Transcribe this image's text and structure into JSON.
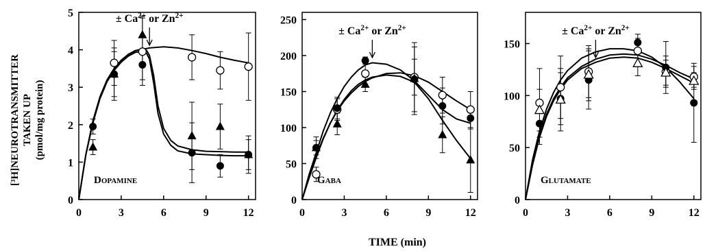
{
  "figure": {
    "ylabel_lines": [
      "[³H]NEUROTRANSMITTER",
      "TAKEN UP",
      "(pmol/mg protein)"
    ],
    "xlabel": "TIME (min)"
  },
  "chart_data": [
    {
      "type": "scatter",
      "panel_label": "DOPAMINE",
      "annotation": "± Ca²⁺ or Zn²⁺",
      "annotation_x": 5,
      "xlim": [
        0,
        12.5
      ],
      "ylim": [
        0,
        5
      ],
      "xticks": [
        0,
        3,
        6,
        9,
        12
      ],
      "yticks": [
        0,
        1,
        2,
        3,
        4,
        5
      ],
      "grid": false,
      "series": [
        {
          "marker": "open-circle",
          "x": [
            2.5,
            4.5,
            8,
            10,
            12
          ],
          "y": [
            3.65,
            3.95,
            3.8,
            3.45,
            3.55
          ],
          "err": [
            0.6,
            0.9,
            0.6,
            0.5,
            0.9
          ],
          "curve": [
            [
              0,
              0
            ],
            [
              0.5,
              1.2
            ],
            [
              1,
              2.1
            ],
            [
              1.5,
              2.75
            ],
            [
              2,
              3.2
            ],
            [
              2.5,
              3.5
            ],
            [
              3,
              3.72
            ],
            [
              3.5,
              3.87
            ],
            [
              4,
              3.97
            ],
            [
              5,
              4.05
            ],
            [
              6,
              4.08
            ],
            [
              7,
              4.05
            ],
            [
              8,
              3.98
            ],
            [
              9,
              3.9
            ],
            [
              10,
              3.8
            ],
            [
              11,
              3.72
            ],
            [
              12,
              3.65
            ]
          ]
        },
        {
          "marker": "filled-circle",
          "x": [
            1,
            2.5,
            4.5,
            8,
            10,
            12
          ],
          "y": [
            1.95,
            3.35,
            3.6,
            1.25,
            0.9,
            1.2
          ],
          "err": [
            0.2,
            0.7,
            0.4,
            0.8,
            0.3,
            0.5
          ],
          "curve": [
            [
              0,
              0
            ],
            [
              0.5,
              1.2
            ],
            [
              1,
              2.05
            ],
            [
              1.5,
              2.7
            ],
            [
              2,
              3.15
            ],
            [
              2.5,
              3.45
            ],
            [
              3,
              3.67
            ],
            [
              3.5,
              3.83
            ],
            [
              4,
              3.93
            ],
            [
              4.5,
              3.96
            ],
            [
              4.8,
              3.9
            ],
            [
              5,
              3.75
            ],
            [
              5.3,
              3.1
            ],
            [
              5.6,
              2.3
            ],
            [
              6,
              1.75
            ],
            [
              6.5,
              1.45
            ],
            [
              7,
              1.3
            ],
            [
              8,
              1.22
            ],
            [
              9,
              1.2
            ],
            [
              10,
              1.18
            ],
            [
              11,
              1.17
            ],
            [
              12,
              1.17
            ]
          ]
        },
        {
          "marker": "filled-triangle",
          "x": [
            1,
            2.5,
            4.5,
            8,
            10,
            12
          ],
          "y": [
            1.4,
            3.35,
            4.4,
            1.7,
            1.95,
            1.2
          ],
          "err": [
            0.2,
            0.6,
            0.5,
            0.9,
            0.6,
            0.4
          ],
          "curve": [
            [
              0,
              0
            ],
            [
              0.5,
              1.2
            ],
            [
              1,
              2.05
            ],
            [
              1.5,
              2.72
            ],
            [
              2,
              3.18
            ],
            [
              2.5,
              3.5
            ],
            [
              3,
              3.72
            ],
            [
              3.5,
              3.88
            ],
            [
              4,
              3.98
            ],
            [
              4.5,
              4.02
            ],
            [
              4.8,
              3.98
            ],
            [
              5,
              3.85
            ],
            [
              5.3,
              3.3
            ],
            [
              5.6,
              2.5
            ],
            [
              6,
              1.9
            ],
            [
              6.5,
              1.58
            ],
            [
              7,
              1.43
            ],
            [
              8,
              1.33
            ],
            [
              9,
              1.29
            ],
            [
              10,
              1.28
            ],
            [
              11,
              1.27
            ],
            [
              12,
              1.27
            ]
          ]
        }
      ]
    },
    {
      "type": "scatter",
      "panel_label": "GABA",
      "annotation": "± Ca²⁺ or Zn²⁺",
      "annotation_x": 5,
      "xlim": [
        0,
        12.5
      ],
      "ylim": [
        0,
        260
      ],
      "xticks": [
        0,
        3,
        6,
        9,
        12
      ],
      "yticks": [
        0,
        50,
        100,
        150,
        200,
        250
      ],
      "grid": false,
      "series": [
        {
          "marker": "open-circle",
          "x": [
            1,
            2.5,
            4.5,
            8,
            10,
            12
          ],
          "y": [
            35,
            125,
            175,
            170,
            145,
            125
          ],
          "err": [
            10,
            15,
            15,
            25,
            25,
            25
          ],
          "curve": [
            [
              0,
              0
            ],
            [
              0.5,
              32
            ],
            [
              1,
              60
            ],
            [
              1.5,
              85
            ],
            [
              2,
              106
            ],
            [
              2.5,
              123
            ],
            [
              3,
              137
            ],
            [
              3.5,
              148
            ],
            [
              4,
              157
            ],
            [
              4.5,
              164
            ],
            [
              5,
              169
            ],
            [
              6,
              175
            ],
            [
              7,
              176
            ],
            [
              8,
              172
            ],
            [
              9,
              163
            ],
            [
              10,
              150
            ],
            [
              11,
              137
            ],
            [
              12,
              125
            ]
          ]
        },
        {
          "marker": "filled-circle",
          "x": [
            1,
            2.5,
            4.5,
            8,
            10,
            12
          ],
          "y": [
            72,
            127,
            193,
            167,
            130,
            113
          ],
          "err": [
            10,
            15,
            5,
            45,
            25,
            15
          ],
          "curve": [
            [
              0,
              0
            ],
            [
              0.5,
              35
            ],
            [
              1,
              65
            ],
            [
              1.5,
              95
            ],
            [
              2,
              120
            ],
            [
              2.5,
              140
            ],
            [
              3,
              157
            ],
            [
              3.5,
              170
            ],
            [
              4,
              180
            ],
            [
              4.5,
              187
            ],
            [
              5,
              190
            ],
            [
              6,
              188
            ],
            [
              7,
              180
            ],
            [
              8,
              165
            ],
            [
              9,
              145
            ],
            [
              10,
              125
            ],
            [
              11,
              112
            ],
            [
              12,
              106
            ]
          ]
        },
        {
          "marker": "filled-triangle",
          "x": [
            1,
            2.5,
            4.5,
            8,
            10,
            12
          ],
          "y": [
            72,
            105,
            160,
            168,
            90,
            55
          ],
          "err": [
            15,
            15,
            10,
            50,
            25,
            45
          ],
          "curve": [
            [
              0,
              0
            ],
            [
              0.5,
              30
            ],
            [
              1,
              58
            ],
            [
              1.5,
              84
            ],
            [
              2,
              106
            ],
            [
              2.5,
              124
            ],
            [
              3,
              139
            ],
            [
              3.5,
              151
            ],
            [
              4,
              160
            ],
            [
              4.5,
              166
            ],
            [
              5,
              170
            ],
            [
              6,
              173
            ],
            [
              7,
              171
            ],
            [
              8,
              163
            ],
            [
              9,
              140
            ],
            [
              10,
              110
            ],
            [
              11,
              82
            ],
            [
              12,
              57
            ]
          ]
        }
      ]
    },
    {
      "type": "scatter",
      "panel_label": "GLUTAMATE",
      "annotation": "± Ca²⁺ or Zn²⁺",
      "annotation_x": 5,
      "xlim": [
        0,
        12.5
      ],
      "ylim": [
        0,
        180
      ],
      "xticks": [
        0,
        3,
        6,
        9,
        12
      ],
      "yticks": [
        0,
        50,
        100,
        150
      ],
      "grid": false,
      "series": [
        {
          "marker": "open-circle",
          "x": [
            1,
            2.5,
            4.5,
            8,
            10,
            12
          ],
          "y": [
            93,
            108,
            123,
            143,
            123,
            118
          ],
          "err": [
            33,
            30,
            25,
            12,
            15,
            10
          ],
          "curve": [
            [
              0,
              0
            ],
            [
              0.5,
              35
            ],
            [
              1,
              62
            ],
            [
              1.5,
              82
            ],
            [
              2,
              97
            ],
            [
              2.5,
              108
            ],
            [
              3,
              117
            ],
            [
              4,
              128
            ],
            [
              5,
              135
            ],
            [
              6,
              139
            ],
            [
              7,
              140
            ],
            [
              8,
              139
            ],
            [
              9,
              135
            ],
            [
              10,
              129
            ],
            [
              11,
              122
            ],
            [
              12,
              116
            ]
          ]
        },
        {
          "marker": "filled-circle",
          "x": [
            1,
            2.5,
            4.5,
            8,
            10,
            12
          ],
          "y": [
            73,
            97,
            115,
            151,
            127,
            93
          ],
          "err": [
            20,
            25,
            28,
            8,
            25,
            38
          ],
          "curve": [
            [
              0,
              0
            ],
            [
              0.5,
              38
            ],
            [
              1,
              66
            ],
            [
              1.5,
              87
            ],
            [
              2,
              103
            ],
            [
              2.5,
              115
            ],
            [
              3,
              124
            ],
            [
              4,
              136
            ],
            [
              5,
              142
            ],
            [
              6,
              145
            ],
            [
              7,
              145
            ],
            [
              8,
              143
            ],
            [
              9,
              137
            ],
            [
              10,
              127
            ],
            [
              11,
              113
            ],
            [
              12,
              97
            ]
          ]
        },
        {
          "marker": "open-triangle",
          "x": [
            1,
            2.5,
            4.5,
            8,
            10,
            12
          ],
          "y": [
            86,
            96,
            120,
            131,
            122,
            114
          ],
          "err": [
            20,
            30,
            25,
            12,
            12,
            8
          ],
          "curve": [
            [
              0,
              0
            ],
            [
              0.5,
              33
            ],
            [
              1,
              60
            ],
            [
              1.5,
              80
            ],
            [
              2,
              95
            ],
            [
              2.5,
              106
            ],
            [
              3,
              115
            ],
            [
              4,
              126
            ],
            [
              5,
              132
            ],
            [
              6,
              136
            ],
            [
              7,
              137
            ],
            [
              8,
              136
            ],
            [
              9,
              132
            ],
            [
              10,
              126
            ],
            [
              11,
              119
            ],
            [
              12,
              112
            ]
          ]
        }
      ]
    }
  ]
}
